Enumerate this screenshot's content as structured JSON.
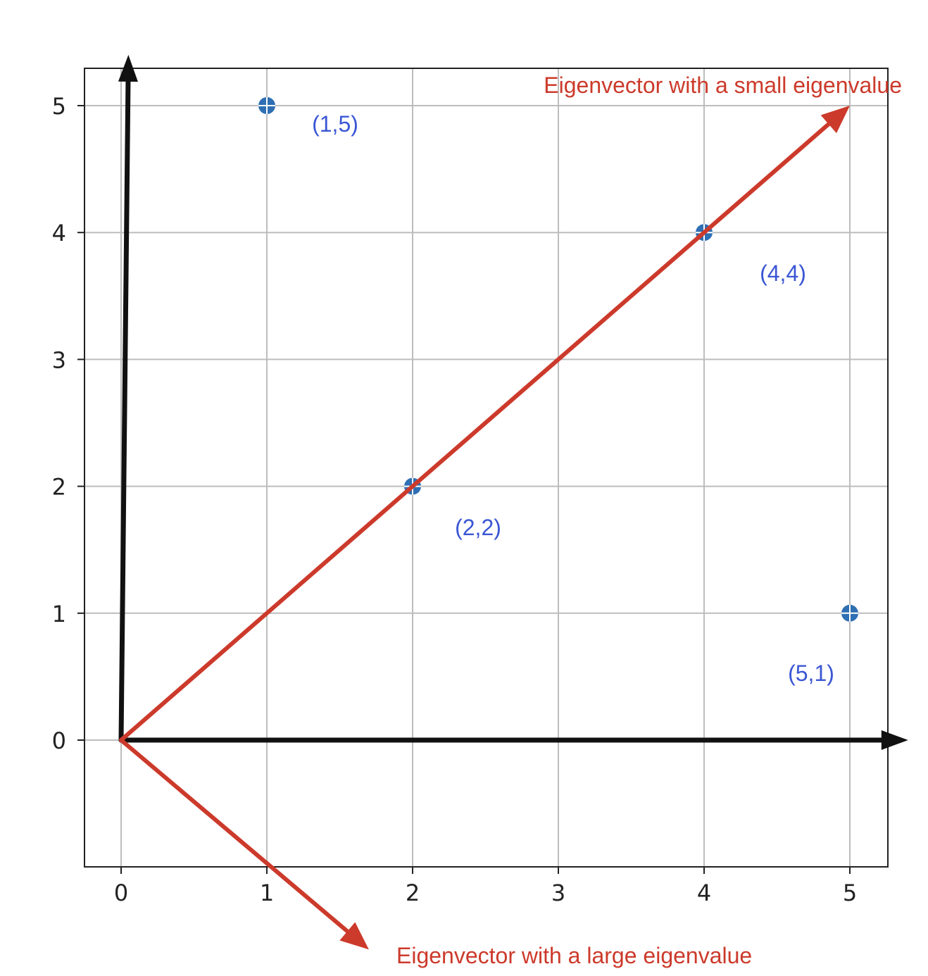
{
  "colors": {
    "point": "#2f6fb3",
    "point_label": "#3a56d4",
    "eigen": "#cc3a2b",
    "axis_arrow": "#111111",
    "grid": "#bdbdbd",
    "frame": "#222222",
    "tick_text": "#222222"
  },
  "chart_data": {
    "type": "scatter",
    "xlim": [
      -0.25,
      5.25
    ],
    "ylim": [
      -1,
      5.3
    ],
    "grid": true,
    "x_ticks": [
      0,
      1,
      2,
      3,
      4,
      5
    ],
    "y_ticks": [
      0,
      1,
      2,
      3,
      4,
      5
    ],
    "x_tick_labels": [
      "0",
      "1",
      "2",
      "3",
      "4",
      "5"
    ],
    "y_tick_labels": [
      "0",
      "1",
      "2",
      "3",
      "4",
      "5"
    ],
    "points": [
      {
        "x": 1,
        "y": 5,
        "label": "(1,5)"
      },
      {
        "x": 2,
        "y": 2,
        "label": "(2,2)"
      },
      {
        "x": 4,
        "y": 4,
        "label": "(4,4)"
      },
      {
        "x": 5,
        "y": 1,
        "label": "(5,1)"
      }
    ],
    "axis_arrows": [
      {
        "from": [
          0,
          0
        ],
        "to": [
          5.4,
          0
        ]
      },
      {
        "from": [
          0,
          0
        ],
        "to": [
          0.05,
          5.4
        ]
      }
    ],
    "eigenvectors": [
      {
        "from": [
          0,
          0
        ],
        "to": [
          5,
          5
        ],
        "label": "Eigenvector with a small eigenvalue"
      },
      {
        "from": [
          0,
          0
        ],
        "to": [
          1.7,
          -1.65
        ],
        "label": "Eigenvector with a large eigenvalue"
      }
    ]
  }
}
